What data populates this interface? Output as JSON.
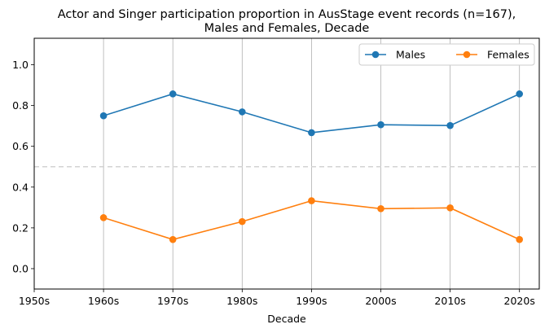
{
  "chart_data": {
    "type": "line",
    "title_line1": "Actor and Singer participation proportion in AusStage event records (n=167),",
    "title_line2": "Males and Females, Decade",
    "xlabel": "Decade",
    "ylabel": "",
    "categories": [
      "1950s",
      "1960s",
      "1970s",
      "1980s",
      "1990s",
      "2000s",
      "2010s",
      "2020s"
    ],
    "yticks": [
      "0.0",
      "0.2",
      "0.4",
      "0.6",
      "0.8",
      "1.0"
    ],
    "ylim": [
      -0.1,
      1.13
    ],
    "reference_line": 0.5,
    "grid": "vertical",
    "legend_position": "top-right",
    "series": [
      {
        "name": "Males",
        "color": "#1f77b4",
        "values": [
          null,
          0.75,
          0.857,
          0.769,
          0.667,
          0.706,
          0.702,
          0.857
        ]
      },
      {
        "name": "Females",
        "color": "#ff7f0e",
        "values": [
          null,
          0.25,
          0.143,
          0.231,
          0.333,
          0.294,
          0.298,
          0.143
        ]
      }
    ]
  }
}
